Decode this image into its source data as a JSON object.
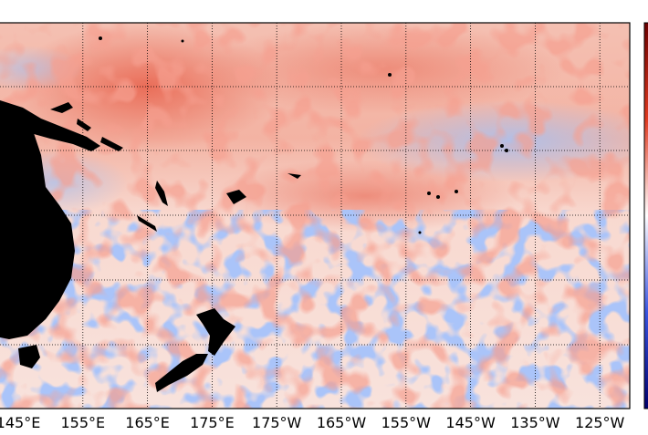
{
  "map": {
    "lon_labels": [
      "145°E",
      "155°E",
      "165°E",
      "175°E",
      "175°W",
      "165°W",
      "155°W",
      "145°W",
      "135°W",
      "125°W"
    ]
  }
}
